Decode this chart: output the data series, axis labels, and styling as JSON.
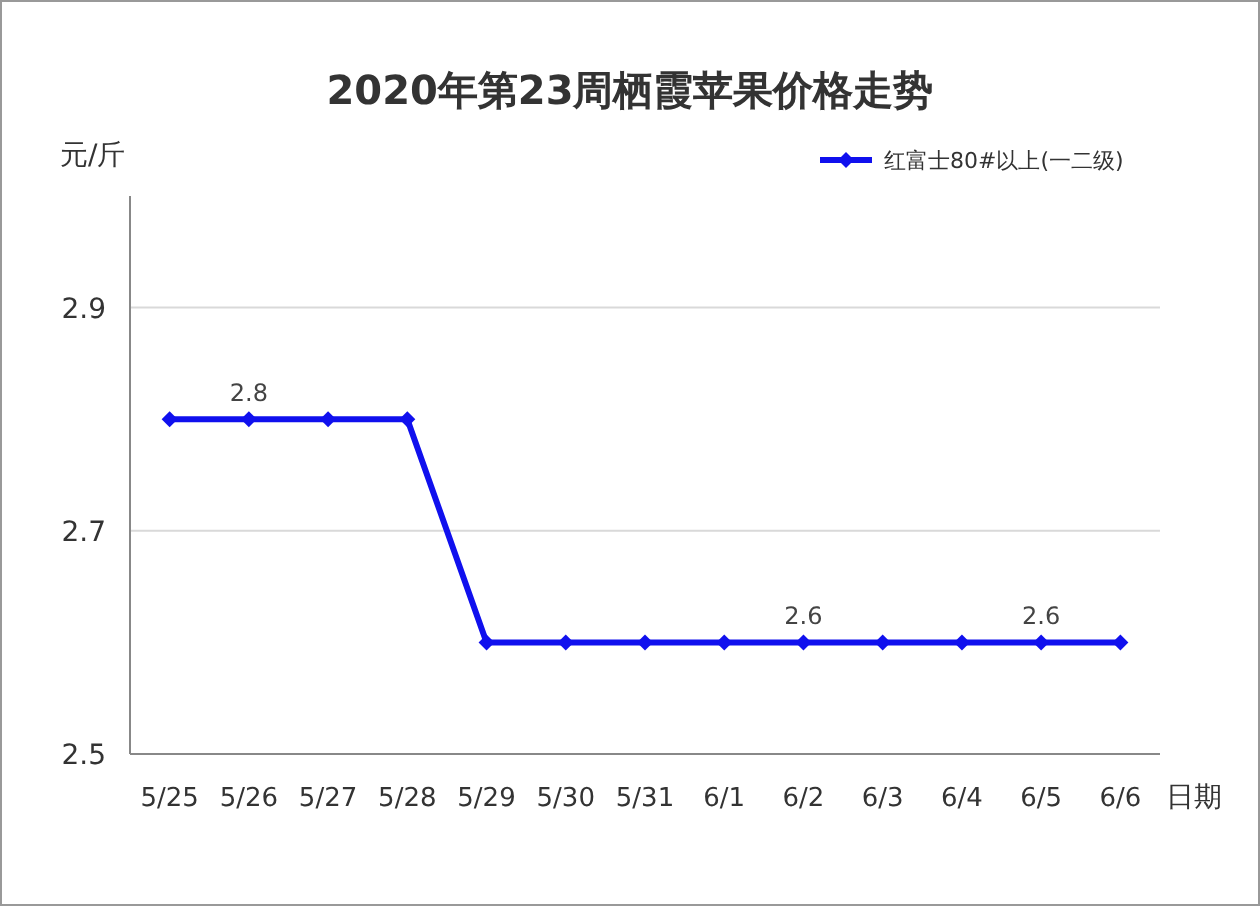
{
  "chart_data": {
    "type": "line",
    "title": "2020年第23周栖霞苹果价格走势",
    "xlabel": "日期",
    "ylabel": "元/斤",
    "categories": [
      "5/25",
      "5/26",
      "5/27",
      "5/28",
      "5/29",
      "5/30",
      "5/31",
      "6/1",
      "6/2",
      "6/3",
      "6/4",
      "6/5",
      "6/6"
    ],
    "series": [
      {
        "name": "红富士80#以上(一二级)",
        "color": "#1010ee",
        "values": [
          2.8,
          2.8,
          2.8,
          2.8,
          2.6,
          2.6,
          2.6,
          2.6,
          2.6,
          2.6,
          2.6,
          2.6,
          2.6
        ],
        "value_labels": [
          null,
          "2.8",
          null,
          null,
          null,
          null,
          null,
          null,
          "2.6",
          null,
          null,
          "2.6",
          null
        ]
      }
    ],
    "ylim": [
      2.5,
      3.0
    ],
    "yticks": [
      2.5,
      2.7,
      2.9
    ],
    "grid": "y",
    "legend": "top right",
    "marker": "diamond",
    "line_style": "solid"
  }
}
